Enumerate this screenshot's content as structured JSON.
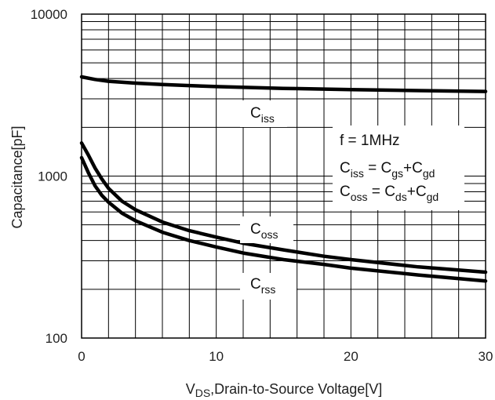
{
  "chart_data": {
    "type": "line",
    "xlabel": {
      "main": "V",
      "sub": "DS",
      "rest": ",Drain-to-Source Voltage[V]"
    },
    "ylabel": "Capacitance[pF]",
    "xlim": [
      0,
      30
    ],
    "ylim": [
      100,
      10000
    ],
    "yscale": "log",
    "grid": true,
    "x_ticks": [
      "0",
      "10",
      "20",
      "30"
    ],
    "y_ticks": [
      "100",
      "1000",
      "10000"
    ],
    "series": [
      {
        "name": "Ciss",
        "label_main": "C",
        "label_sub": "iss",
        "points": [
          [
            0,
            4100
          ],
          [
            1,
            3950
          ],
          [
            2,
            3850
          ],
          [
            4,
            3750
          ],
          [
            6,
            3680
          ],
          [
            8,
            3620
          ],
          [
            10,
            3570
          ],
          [
            15,
            3480
          ],
          [
            20,
            3420
          ],
          [
            25,
            3370
          ],
          [
            30,
            3330
          ]
        ]
      },
      {
        "name": "Coss",
        "label_main": "C",
        "label_sub": "oss",
        "points": [
          [
            0,
            1600
          ],
          [
            0.5,
            1350
          ],
          [
            1,
            1120
          ],
          [
            1.5,
            960
          ],
          [
            2,
            840
          ],
          [
            3,
            700
          ],
          [
            4,
            620
          ],
          [
            6,
            520
          ],
          [
            8,
            460
          ],
          [
            10,
            420
          ],
          [
            12,
            385
          ],
          [
            15,
            350
          ],
          [
            18,
            320
          ],
          [
            20,
            305
          ],
          [
            25,
            275
          ],
          [
            30,
            255
          ]
        ]
      },
      {
        "name": "Crss",
        "label_main": "C",
        "label_sub": "rss",
        "points": [
          [
            0,
            1300
          ],
          [
            0.5,
            1050
          ],
          [
            1,
            870
          ],
          [
            1.5,
            760
          ],
          [
            2,
            690
          ],
          [
            3,
            590
          ],
          [
            4,
            530
          ],
          [
            6,
            450
          ],
          [
            8,
            400
          ],
          [
            10,
            365
          ],
          [
            12,
            335
          ],
          [
            15,
            305
          ],
          [
            18,
            285
          ],
          [
            20,
            270
          ],
          [
            25,
            245
          ],
          [
            30,
            225
          ]
        ]
      }
    ],
    "annotation": {
      "freq": "f = 1MHz",
      "eq1": {
        "lhs_main": "C",
        "lhs_sub": "iss",
        "t1_main": "C",
        "t1_sub": "gs",
        "t2_main": "C",
        "t2_sub": "gd"
      },
      "eq2": {
        "lhs_main": "C",
        "lhs_sub": "oss",
        "t1_main": "C",
        "t1_sub": "ds",
        "t2_main": "C",
        "t2_sub": "gd"
      }
    }
  }
}
